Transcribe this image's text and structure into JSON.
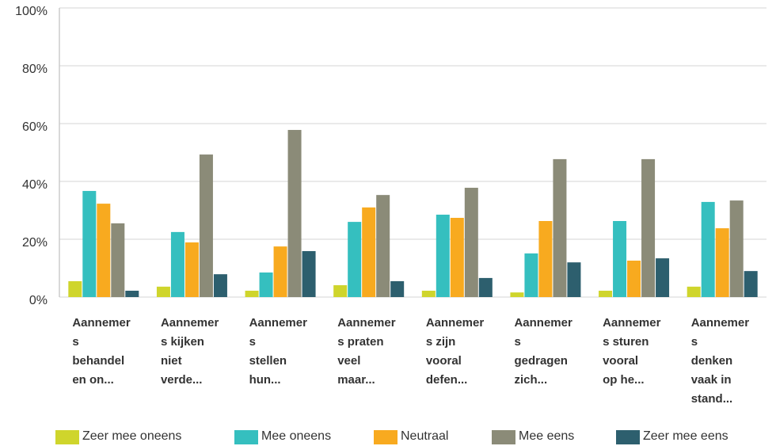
{
  "chart_data": {
    "type": "bar",
    "categories": [
      [
        "Aannemer",
        "s",
        "behandel",
        "en on..."
      ],
      [
        "Aannemer",
        "s kijken",
        "niet",
        "verde..."
      ],
      [
        "Aannemer",
        "s",
        "stellen",
        "hun..."
      ],
      [
        "Aannemer",
        "s praten",
        "veel",
        "maar..."
      ],
      [
        "Aannemer",
        "s zijn",
        "vooral",
        "defen..."
      ],
      [
        "Aannemer",
        "s",
        "gedragen",
        "zich..."
      ],
      [
        "Aannemer",
        "s sturen",
        "vooral",
        "op he..."
      ],
      [
        "Aannemer",
        "s",
        "denken",
        "vaak in",
        "stand..."
      ]
    ],
    "series": [
      {
        "name": "Zeer mee oneens",
        "color": "#cfd52c",
        "values": [
          5.5,
          3.6,
          2.2,
          4.1,
          2.2,
          1.6,
          2.2,
          3.6
        ]
      },
      {
        "name": "Mee oneens",
        "color": "#35bfbf",
        "values": [
          36.7,
          22.5,
          8.5,
          26,
          28.5,
          15.1,
          26.3,
          32.9
        ]
      },
      {
        "name": "Neutraal",
        "color": "#f8aa1f",
        "values": [
          32.3,
          18.9,
          17.5,
          31,
          27.4,
          26.3,
          12.6,
          23.8
        ]
      },
      {
        "name": "Mee eens",
        "color": "#8b8b78",
        "values": [
          25.5,
          49.3,
          57.8,
          35.3,
          37.8,
          47.7,
          47.7,
          33.4
        ]
      },
      {
        "name": "Zeer mee eens",
        "color": "#2d5f6e",
        "values": [
          2.2,
          7.9,
          15.9,
          5.5,
          6.6,
          12,
          13.4,
          9
        ]
      }
    ],
    "ylim": [
      0,
      100
    ],
    "yticks": [
      {
        "value": 0,
        "label": "0%"
      },
      {
        "value": 20,
        "label": "20%"
      },
      {
        "value": 40,
        "label": "40%"
      },
      {
        "value": 60,
        "label": "60%"
      },
      {
        "value": 80,
        "label": "80%"
      },
      {
        "value": 100,
        "label": "100%"
      }
    ],
    "grid": true
  }
}
